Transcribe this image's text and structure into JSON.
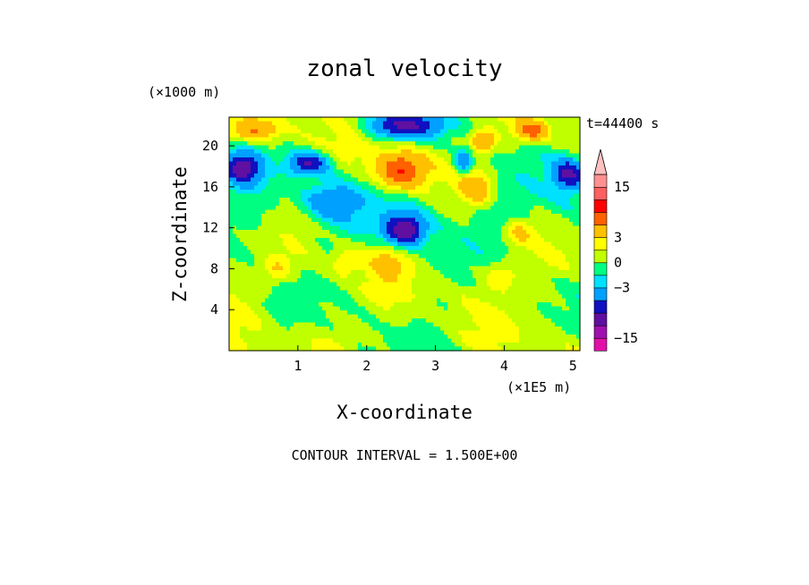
{
  "chart_data": {
    "type": "heatmap",
    "title": "zonal velocity",
    "xlabel": "X-coordinate",
    "ylabel": "Z-coordinate",
    "x_scale_label": "(×1E5 m)",
    "y_scale_label": "(×1000 m)",
    "time_label": "t=44400 s",
    "footer": "CONTOUR INTERVAL = 1.500E+00",
    "xlim": [
      0.0,
      5.1
    ],
    "ylim": [
      0.0,
      22.8
    ],
    "x_ticks": [
      1,
      2,
      3,
      4,
      5
    ],
    "x_tick_labels": [
      "1",
      "2",
      "3",
      "4",
      "5"
    ],
    "y_ticks": [
      4,
      8,
      12,
      16,
      20
    ],
    "y_tick_labels": [
      "4",
      "8",
      "12",
      "16",
      "20"
    ],
    "colorbar": {
      "levels": [
        -18,
        -15,
        -12,
        -9,
        -6,
        -3,
        -1.5,
        0,
        1.5,
        3,
        6,
        9,
        12,
        15,
        18
      ],
      "colors": [
        "#e010a8",
        "#a010b0",
        "#6010a0",
        "#1010c0",
        "#00a0ff",
        "#00e0ff",
        "#00ff80",
        "#c0ff00",
        "#ffff00",
        "#ffc000",
        "#ff6000",
        "#ff0000",
        "#ff6060",
        "#ff9090",
        "#ffc0c0"
      ],
      "tick_values": [
        15,
        3,
        0,
        -3,
        -15
      ],
      "tick_labels": [
        "15",
        "3",
        "0",
        "−3",
        "−15"
      ]
    },
    "features": [
      {
        "x": 2.55,
        "z": 11.8,
        "amp": -11,
        "sx": 0.28,
        "sz": 1.4
      },
      {
        "x": 1.15,
        "z": 18.3,
        "amp": -9,
        "sx": 0.28,
        "sz": 1.1
      },
      {
        "x": 2.55,
        "z": 22.0,
        "amp": -9,
        "sx": 0.55,
        "sz": 1.2
      },
      {
        "x": 0.2,
        "z": 17.8,
        "amp": -10,
        "sx": 0.25,
        "sz": 1.5
      },
      {
        "x": 4.95,
        "z": 17.3,
        "amp": -9,
        "sx": 0.22,
        "sz": 1.4
      },
      {
        "x": 3.4,
        "z": 18.5,
        "amp": -6,
        "sx": 0.12,
        "sz": 1.2
      },
      {
        "x": 1.5,
        "z": 14.5,
        "amp": -4,
        "sx": 0.35,
        "sz": 1.5
      },
      {
        "x": 2.5,
        "z": 17.6,
        "amp": 9,
        "sx": 0.35,
        "sz": 1.8
      },
      {
        "x": 0.35,
        "z": 21.5,
        "amp": 6,
        "sx": 0.35,
        "sz": 1.1
      },
      {
        "x": 3.6,
        "z": 15.8,
        "amp": 5,
        "sx": 0.25,
        "sz": 1.8
      },
      {
        "x": 4.4,
        "z": 21.5,
        "amp": 7,
        "sx": 0.22,
        "sz": 1.0
      },
      {
        "x": 3.7,
        "z": 20.5,
        "amp": 6,
        "sx": 0.18,
        "sz": 1.0
      },
      {
        "x": 0.7,
        "z": 8.0,
        "amp": 3,
        "sx": 0.22,
        "sz": 1.2
      },
      {
        "x": 3.95,
        "z": 7.3,
        "amp": 3,
        "sx": 0.25,
        "sz": 1.4
      },
      {
        "x": 1.7,
        "z": 8.7,
        "amp": 2.5,
        "sx": 0.2,
        "sz": 1.2
      },
      {
        "x": 4.2,
        "z": 11.5,
        "amp": 3.5,
        "sx": 0.2,
        "sz": 1.2
      },
      {
        "x": 2.3,
        "z": 8.5,
        "amp": 2.5,
        "sx": 0.25,
        "sz": 1.4
      }
    ]
  }
}
